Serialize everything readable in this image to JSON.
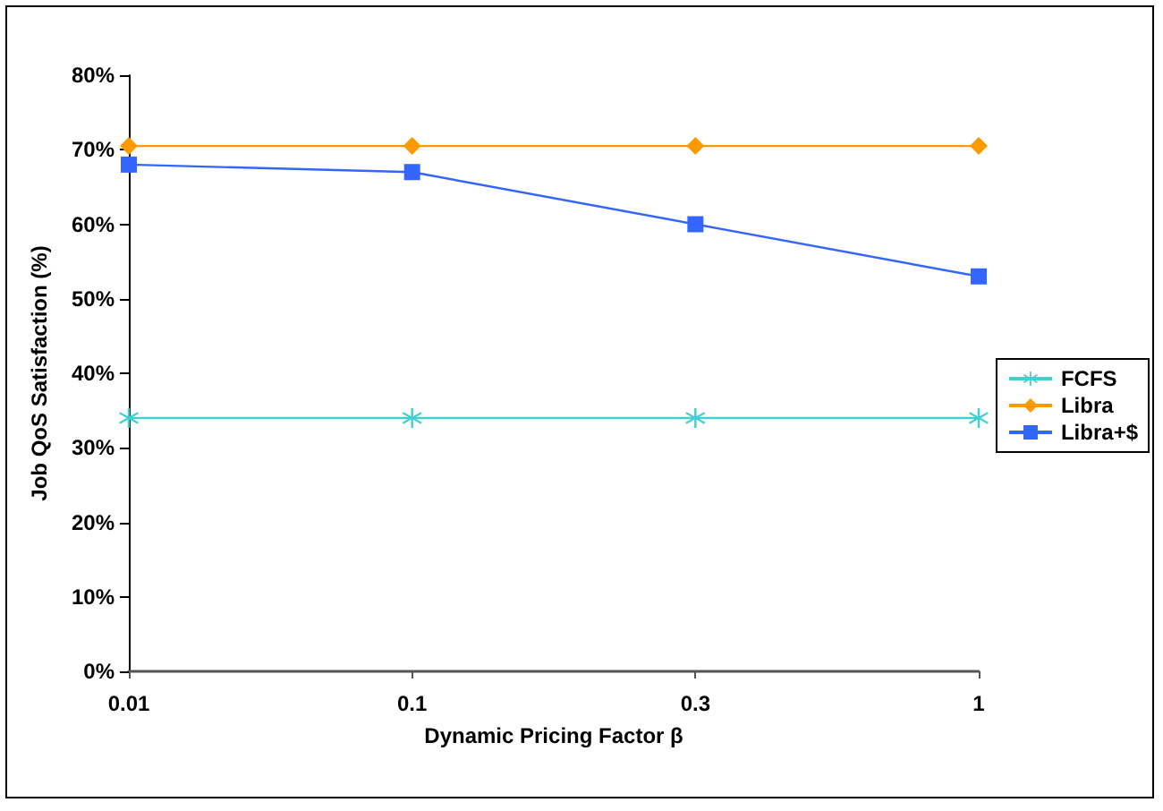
{
  "chart_data": {
    "type": "line",
    "xlabel": "Dynamic Pricing Factor β",
    "ylabel": "Job QoS Satisfaction (%)",
    "categories": [
      "0.01",
      "0.1",
      "0.3",
      "1"
    ],
    "series": [
      {
        "name": "FCFS",
        "color": "#40d0d0",
        "marker": "cross",
        "values": [
          34,
          34,
          34,
          34
        ]
      },
      {
        "name": "Libra",
        "color": "#ff9900",
        "marker": "diamond",
        "values": [
          70.5,
          70.5,
          70.5,
          70.5
        ]
      },
      {
        "name": "Libra+$",
        "color": "#3366ff",
        "marker": "square",
        "values": [
          68,
          67,
          60,
          53
        ]
      }
    ],
    "ylim": [
      0,
      80
    ],
    "yticks": [
      {
        "value": 0,
        "label": "0%"
      },
      {
        "value": 10,
        "label": "10%"
      },
      {
        "value": 20,
        "label": "20%"
      },
      {
        "value": 30,
        "label": "30%"
      },
      {
        "value": 40,
        "label": "40%"
      },
      {
        "value": 50,
        "label": "50%"
      },
      {
        "value": 60,
        "label": "60%"
      },
      {
        "value": 70,
        "label": "70%"
      },
      {
        "value": 80,
        "label": "80%"
      }
    ],
    "grid": false,
    "legend": "right",
    "line_style": "solid"
  }
}
